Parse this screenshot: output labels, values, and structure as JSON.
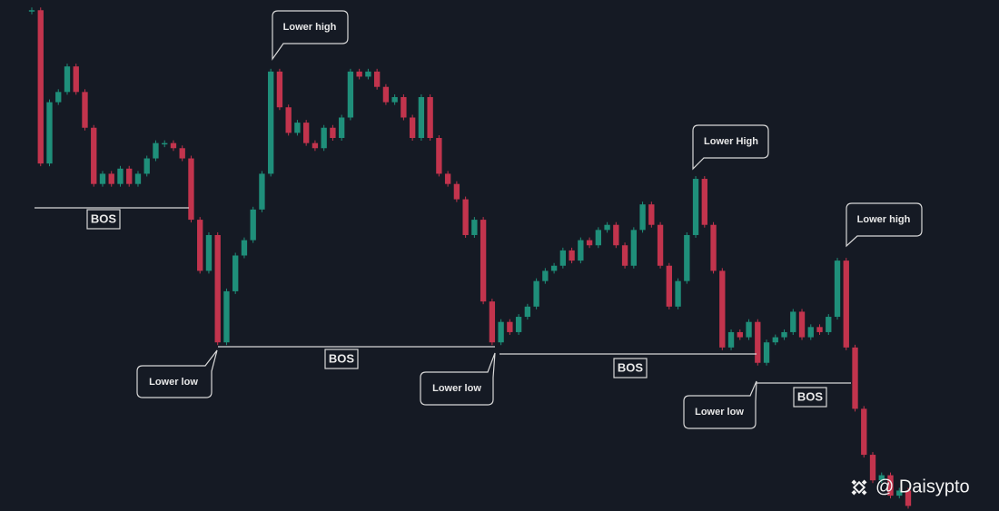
{
  "chart_data": {
    "type": "candlestick",
    "values": [
      98,
      68,
      80,
      82,
      87,
      82,
      75,
      64,
      66,
      64,
      67,
      64,
      66,
      69,
      72,
      72,
      71,
      69,
      57,
      47,
      54,
      33,
      43,
      50,
      53,
      59,
      66,
      86,
      79,
      74,
      76,
      72,
      71,
      75,
      73,
      77,
      86,
      85,
      86,
      83,
      80,
      81,
      77,
      73,
      81,
      73,
      66,
      64,
      61,
      54,
      57,
      41,
      33,
      37,
      35,
      38,
      40,
      45,
      47,
      48,
      51,
      49,
      53,
      52,
      55,
      56,
      52,
      48,
      55,
      60,
      56,
      48,
      40,
      45,
      54,
      65,
      56,
      47,
      32,
      35,
      34,
      37,
      29,
      33,
      34,
      35,
      39,
      34,
      36,
      35,
      38,
      49,
      32,
      20,
      11,
      6,
      7,
      3,
      4,
      1
    ],
    "ylim": [
      0,
      100
    ],
    "up_color": "#1f8f7a",
    "down_color": "#c2344d",
    "annotations": [
      "Lower high",
      "Lower High",
      "Lower high",
      "Lower low",
      "Lower low",
      "Lower low",
      "BOS",
      "BOS",
      "BOS",
      "BOS"
    ],
    "watermark": "@ Daisypto"
  }
}
